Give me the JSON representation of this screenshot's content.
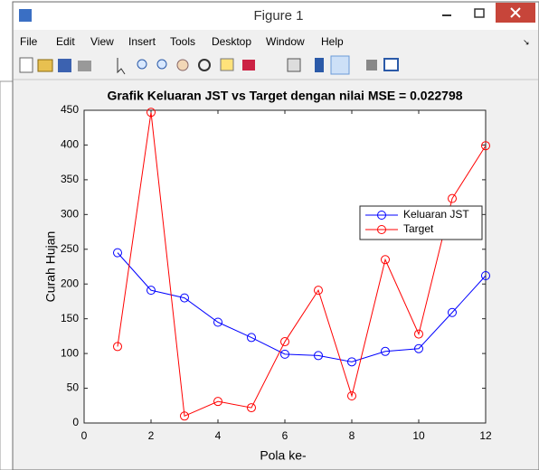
{
  "window": {
    "title": "Figure 1",
    "menu": [
      "File",
      "Edit",
      "View",
      "Insert",
      "Tools",
      "Desktop",
      "Window",
      "Help"
    ]
  },
  "chart_data": {
    "type": "line",
    "title": "Grafik Keluaran JST vs Target dengan nilai MSE = 0.022798",
    "x_label": "Pola ke-",
    "y_label": "Curah Hujan",
    "x": [
      1,
      2,
      3,
      4,
      5,
      6,
      7,
      8,
      9,
      10,
      11,
      12
    ],
    "series": [
      {
        "name": "Keluaran JST",
        "color": "#0000ff",
        "values": [
          245,
          191,
          180,
          145,
          123,
          99,
          97,
          88,
          103,
          107,
          159,
          212
        ]
      },
      {
        "name": "Target",
        "color": "#ff0000",
        "values": [
          110,
          447,
          10,
          31,
          22,
          117,
          191,
          39,
          235,
          128,
          323,
          399
        ]
      }
    ],
    "xlim": [
      0,
      12
    ],
    "xticks": [
      0,
      2,
      4,
      6,
      8,
      10,
      12
    ],
    "ylim": [
      0,
      450
    ],
    "yticks": [
      0,
      50,
      100,
      150,
      200,
      250,
      300,
      350,
      400,
      450
    ],
    "legend": "right",
    "marker": "circle"
  }
}
